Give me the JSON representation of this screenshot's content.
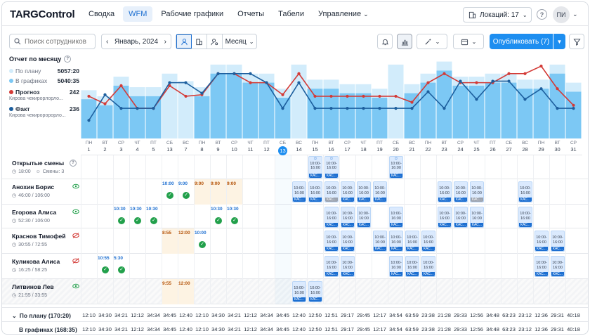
{
  "app": {
    "logo": "TARGControl"
  },
  "nav": [
    {
      "label": "Сводка",
      "active": false
    },
    {
      "label": "WFM",
      "active": true
    },
    {
      "label": "Рабочие графики",
      "active": false
    },
    {
      "label": "Отчеты",
      "active": false
    },
    {
      "label": "Табели",
      "active": false
    },
    {
      "label": "Управление",
      "active": false,
      "dropdown": true
    }
  ],
  "header": {
    "location": "Локаций: 17",
    "avatar": "ПИ"
  },
  "toolbar": {
    "search_placeholder": "Поиск сотрудников",
    "period": "Январь, 2024",
    "scale": "Месяц",
    "publish": "Опубликовать (7)"
  },
  "legend": {
    "title": "Отчет по месяцу",
    "plan_label": "По плану",
    "plan_value": "5057:20",
    "graph_label": "В графиках",
    "graph_value": "5040:35",
    "forecast_label": "Прогноз",
    "forecast_value": "242",
    "forecast_sub": "Кирова чекирорлорло...",
    "fact_label": "Факт",
    "fact_value": "236",
    "fact_sub": "Кирова чекироророрло..."
  },
  "colors": {
    "primary": "#1d8ef0",
    "bar": "#7cc8f4",
    "bar_light": "#d2ecfb",
    "forecast": "#d33a36",
    "fact": "#1d5f9e"
  },
  "chart_data": {
    "type": "bar",
    "title": "Отчет по месяцу",
    "categories": [
      "1",
      "2",
      "3",
      "4",
      "5",
      "13",
      "7",
      "8",
      "9",
      "10",
      "11",
      "12",
      "13",
      "14",
      "15",
      "16",
      "17",
      "18",
      "19",
      "20",
      "21",
      "22",
      "23",
      "24",
      "25",
      "26",
      "27",
      "28",
      "29",
      "30",
      "31"
    ],
    "series": [
      {
        "name": "В графиках",
        "kind": "bar",
        "values": [
          52,
          44,
          70,
          56,
          56,
          74,
          64,
          56,
          86,
          86,
          74,
          74,
          54,
          86,
          66,
          66,
          60,
          60,
          54,
          86,
          60,
          74,
          90,
          70,
          70,
          74,
          74,
          66,
          66,
          86,
          62
        ]
      },
      {
        "name": "Прогноз",
        "kind": "line",
        "values": [
          56,
          46,
          70,
          40,
          40,
          70,
          56,
          58,
          86,
          86,
          74,
          74,
          58,
          86,
          56,
          56,
          56,
          56,
          56,
          56,
          48,
          74,
          86,
          74,
          74,
          74,
          86,
          86,
          96,
          66,
          44
        ]
      },
      {
        "name": "Факт",
        "kind": "line",
        "values": [
          24,
          58,
          40,
          40,
          40,
          74,
          74,
          60,
          86,
          86,
          86,
          74,
          40,
          74,
          40,
          40,
          40,
          40,
          40,
          40,
          40,
          62,
          40,
          76,
          52,
          76,
          76,
          52,
          66,
          40,
          40
        ]
      }
    ],
    "ylim": [
      0,
      110
    ]
  },
  "days": [
    {
      "w": "ПН",
      "d": "1"
    },
    {
      "w": "ВТ",
      "d": "2"
    },
    {
      "w": "СР",
      "d": "3"
    },
    {
      "w": "ЧТ",
      "d": "4"
    },
    {
      "w": "ПТ",
      "d": "5"
    },
    {
      "w": "СБ",
      "d": "13"
    },
    {
      "w": "ВС",
      "d": "7"
    },
    {
      "w": "ПН",
      "d": "8"
    },
    {
      "w": "ВТ",
      "d": "9"
    },
    {
      "w": "СР",
      "d": "10"
    },
    {
      "w": "ЧТ",
      "d": "11"
    },
    {
      "w": "ПТ",
      "d": "12"
    },
    {
      "w": "СБ",
      "d": "13",
      "today": true
    },
    {
      "w": "ВС",
      "d": "14"
    },
    {
      "w": "ПН",
      "d": "15"
    },
    {
      "w": "ВТ",
      "d": "16"
    },
    {
      "w": "СР",
      "d": "17"
    },
    {
      "w": "ЧТ",
      "d": "18"
    },
    {
      "w": "ПТ",
      "d": "19"
    },
    {
      "w": "СБ",
      "d": "20"
    },
    {
      "w": "ВС",
      "d": "21"
    },
    {
      "w": "ПН",
      "d": "22"
    },
    {
      "w": "ВТ",
      "d": "23"
    },
    {
      "w": "СР",
      "d": "24"
    },
    {
      "w": "ЧТ",
      "d": "25"
    },
    {
      "w": "ПТ",
      "d": "26"
    },
    {
      "w": "СБ",
      "d": "27"
    },
    {
      "w": "ВС",
      "d": "28"
    },
    {
      "w": "ПН",
      "d": "29"
    },
    {
      "w": "ВТ",
      "d": "30"
    },
    {
      "w": "СР",
      "d": "31"
    }
  ],
  "open_shifts": {
    "title": "Открытые смены",
    "time": "18:00",
    "count": "Смены: 3"
  },
  "employees": [
    {
      "name": "Анохин Борис",
      "hours": "46:00 / 106:00",
      "visible": true
    },
    {
      "name": "Егорова Алиса",
      "hours": "52:30 / 106:00",
      "visible": true
    },
    {
      "name": "Краснов Тимофей",
      "hours": "30:55 / 72:55",
      "visible": false
    },
    {
      "name": "Куликова Алиса",
      "hours": "16:25 / 58:25",
      "visible": false
    },
    {
      "name": "Литвинов Лев",
      "hours": "21:55 / 33:55",
      "visible": true
    }
  ],
  "shift": {
    "range": "10:00-16:00",
    "role": "КАС..."
  },
  "footer": {
    "plan_label": "По плану (170:20)",
    "graph_label": "В графиках (168:35)",
    "plan": [
      "12:10",
      "34:30",
      "34:21",
      "12:12",
      "34:34",
      "34:45",
      "12:40",
      "12:10",
      "34:30",
      "34:21",
      "12:12",
      "34:34",
      "34:45",
      "12:40",
      "12:50",
      "12:51",
      "29:17",
      "29:45",
      "12:17",
      "34:54",
      "63:59",
      "23:38",
      "21:28",
      "29:33",
      "12:56",
      "34:48",
      "63:23",
      "23:12",
      "12:36",
      "29:31",
      "40:18"
    ],
    "graph": [
      "12:10",
      "34:30",
      "34:21",
      "12:12",
      "34:34",
      "34:45",
      "12:40",
      "12:10",
      "34:30",
      "34:21",
      "12:12",
      "34:34",
      "34:45",
      "12:40",
      "12:50",
      "12:51",
      "29:17",
      "29:45",
      "12:17",
      "34:54",
      "63:59",
      "23:38",
      "21:28",
      "29:33",
      "12:56",
      "34:48",
      "63:23",
      "23:12",
      "12:36",
      "29:31",
      "40:18"
    ]
  }
}
